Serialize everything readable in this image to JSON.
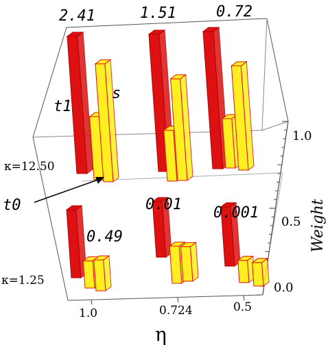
{
  "chart_data": {
    "type": "bar",
    "subtype": "3d-bar",
    "title": "",
    "xlabel": "η",
    "ylabel": "",
    "zlabel": "Weight",
    "x_categories": [
      "1.0",
      "0.724",
      "0.5"
    ],
    "y_categories": [
      "κ=1.25",
      "κ=12.50"
    ],
    "zlim": [
      0.0,
      1.0
    ],
    "z_ticks": [
      "0.0",
      "0.5",
      "1.0"
    ],
    "series": [
      {
        "name": "t0",
        "color": "#dd1111",
        "row": "κ=1.25",
        "values": [
          0.55,
          0.45,
          0.48
        ]
      },
      {
        "name": "",
        "color": "#ffee22",
        "row": "κ=1.25",
        "values": [
          0.22,
          0.3,
          0.18
        ]
      },
      {
        "name": "",
        "color": "#ffee22",
        "row": "κ=1.25",
        "values": [
          0.25,
          0.28,
          0.19
        ]
      },
      {
        "name": "t1",
        "color": "#dd1111",
        "row": "κ=12.50",
        "values": [
          1.0,
          1.0,
          1.0
        ]
      },
      {
        "name": "",
        "color": "#ffee22",
        "row": "κ=12.50",
        "values": [
          0.46,
          0.37,
          0.36
        ]
      },
      {
        "name": "s",
        "color": "#ffee22",
        "row": "κ=12.50",
        "values": [
          0.86,
          0.74,
          0.76
        ]
      }
    ],
    "annotations": {
      "back_row_values": [
        "2.41",
        "1.51",
        "0.72"
      ],
      "front_row_values": [
        "0.49",
        "0.01",
        "0.001"
      ],
      "labels": [
        "t1",
        "s",
        "t0"
      ]
    },
    "grid": false,
    "legend": "none"
  }
}
